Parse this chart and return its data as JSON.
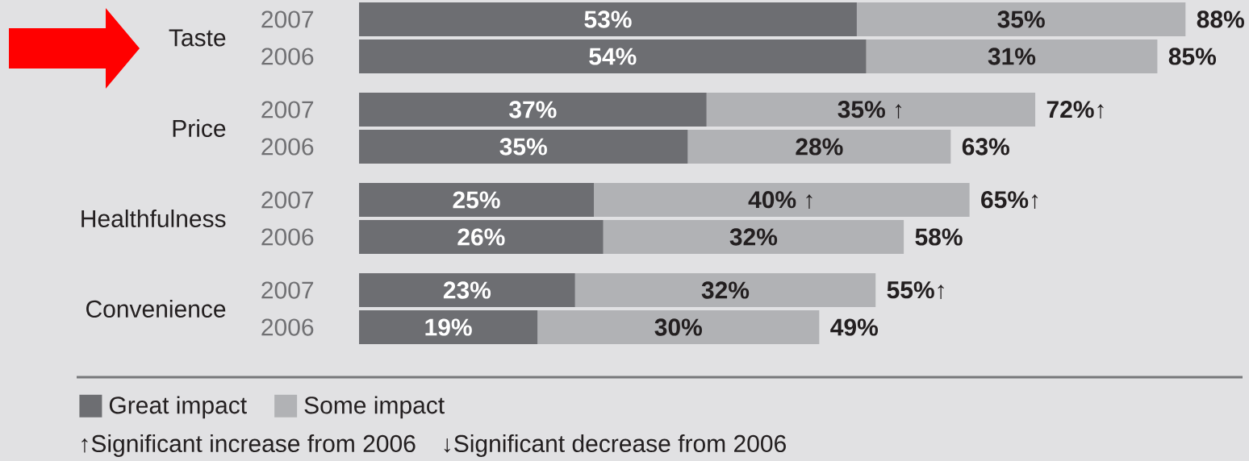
{
  "chart_data": {
    "type": "bar",
    "orientation": "horizontal",
    "stacked": true,
    "tick_labels": "y",
    "legend": "bottom left",
    "categories": [
      "2007",
      "2006",
      "2007",
      "2006",
      "2007",
      "2006",
      "2007",
      "2006"
    ],
    "series": [
      {
        "name": "Great impact",
        "color": "#6d6e72",
        "values": [
          53,
          54,
          37,
          35,
          25,
          26,
          23,
          19
        ],
        "value_labels": [
          "53%",
          "54%",
          "37%",
          "35%",
          "25%",
          "26%",
          "23%",
          "19%"
        ]
      },
      {
        "name": "Some impact",
        "color": "#b1b2b5",
        "values": [
          35,
          31,
          35,
          28,
          40,
          32,
          32,
          30
        ],
        "value_labels": [
          "35%",
          "31%",
          "35% ↑",
          "28%",
          "40% ↑",
          "32%",
          "32%",
          "30%"
        ]
      }
    ],
    "totals": [
      "88%",
      "85%",
      "72%↑",
      "63%",
      "65%↑",
      "58%",
      "55%↑",
      "49%"
    ],
    "annotations": [
      "Taste",
      "Price",
      "Healthfulness",
      "Convenience",
      "↑Significant increase from 2006",
      "↓Significant decrease from 2006"
    ]
  }
}
